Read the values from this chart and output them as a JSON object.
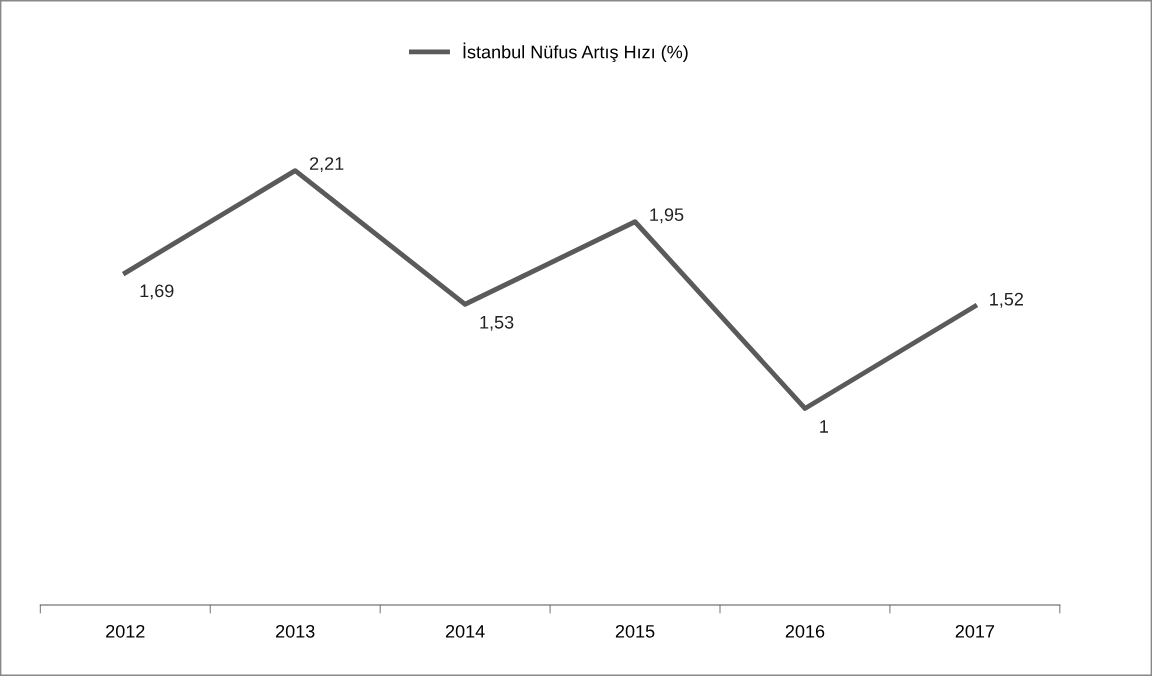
{
  "chart_data": {
    "type": "line",
    "categories": [
      "2012",
      "2013",
      "2014",
      "2015",
      "2016",
      "2017"
    ],
    "series": [
      {
        "name": "İstanbul Nüfus Artış Hızı (%)",
        "color": "#5a5a5a",
        "values": [
          1.69,
          2.21,
          1.53,
          1.95,
          1,
          1.52
        ],
        "value_labels": [
          "1,69",
          "2,21",
          "1,53",
          "1,95",
          "1",
          "1,52"
        ]
      }
    ],
    "tick_labels": "x",
    "grid": false,
    "legend": "top",
    "marker": "none",
    "line_style": "solid"
  }
}
